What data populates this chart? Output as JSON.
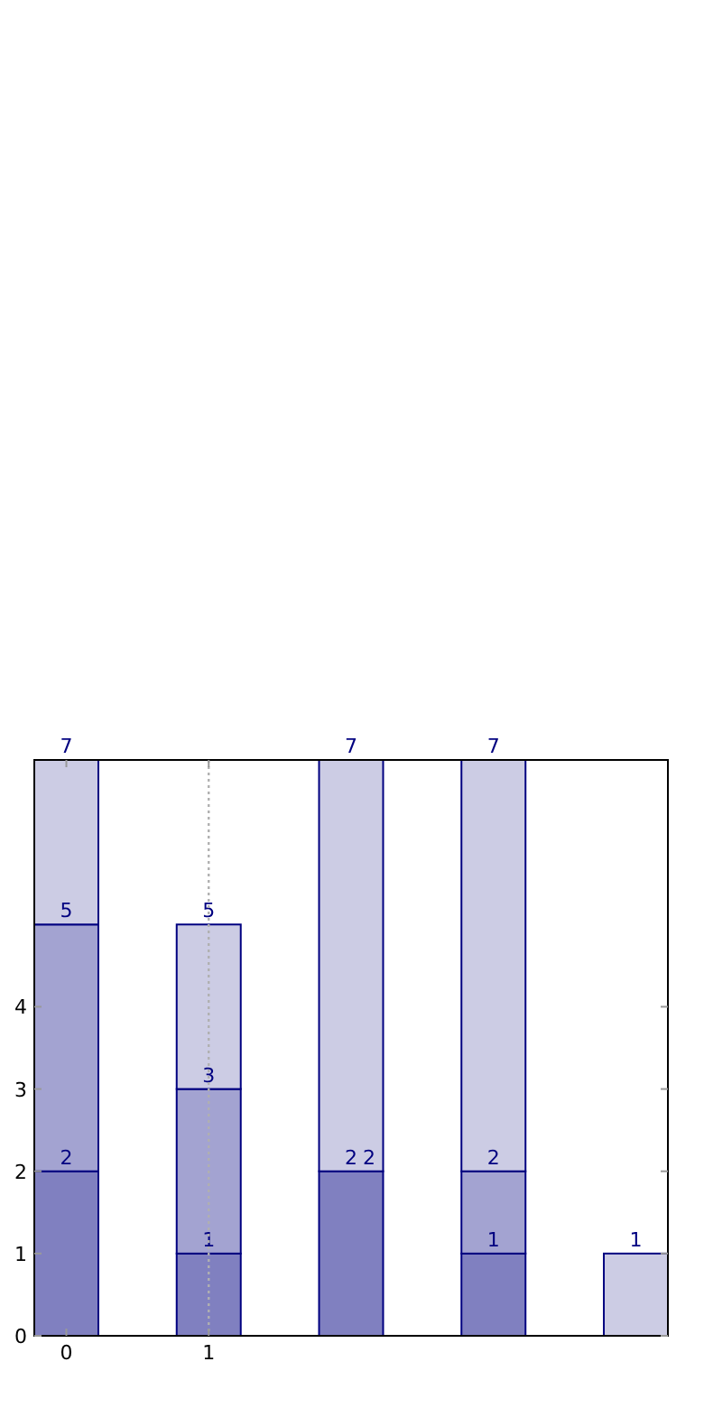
{
  "chart_data": {
    "type": "bar",
    "stacked": true,
    "categories": [
      "0",
      "1",
      null,
      null,
      null
    ],
    "series": [
      {
        "color": "#8080c0",
        "values": [
          2,
          1,
          2,
          1,
          0
        ],
        "value_labels": [
          "2",
          "1",
          "2",
          "1",
          null
        ]
      },
      {
        "color": "#a3a3d1",
        "values": [
          3,
          2,
          0,
          1,
          0
        ]
      },
      {
        "color": "#cccce4",
        "values": [
          2,
          2,
          5,
          5,
          1
        ]
      }
    ],
    "totals": [
      "7",
      "5",
      "7",
      "7",
      "1"
    ],
    "annotations": [
      {
        "text": "5",
        "x": "0",
        "y": 5
      },
      {
        "text": "3",
        "x": "1",
        "y": 3
      },
      {
        "text": "2",
        "y": 2
      },
      {
        "text": "2",
        "y": 2
      }
    ],
    "ylim": [
      0,
      7
    ],
    "yticks": [
      0,
      1,
      2,
      3,
      4
    ],
    "grid": false,
    "ref_lines": [
      {
        "axis": "x",
        "value": "1",
        "color": "#b0b0b0",
        "line_style": "dotted"
      }
    ]
  }
}
